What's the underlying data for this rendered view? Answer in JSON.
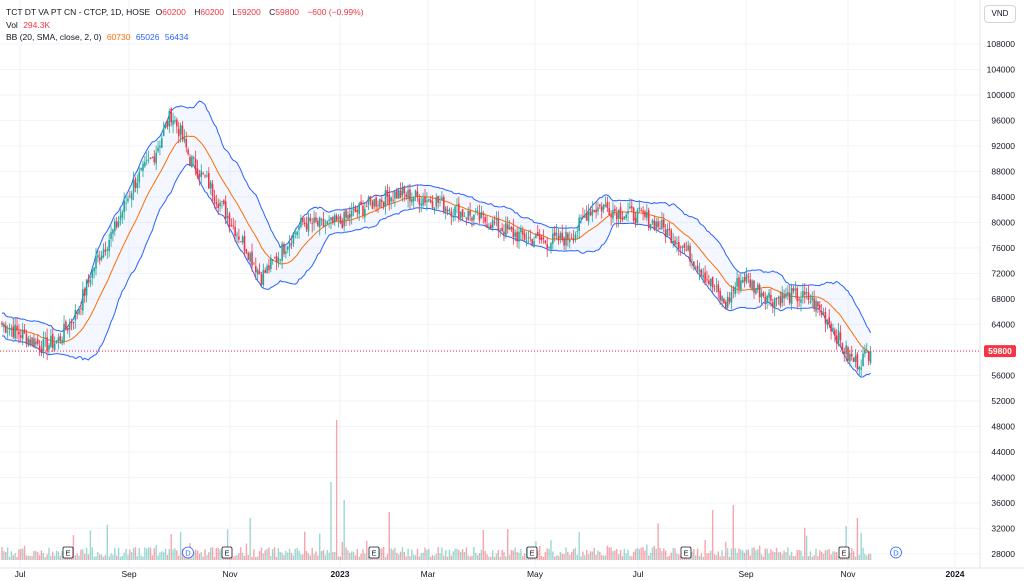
{
  "legend": {
    "title": "TCT DT VA PT CN - CTCP, 1D, HOSE",
    "open_label": "O",
    "open": "60200",
    "high_label": "H",
    "high": "60200",
    "low_label": "L",
    "low": "59200",
    "close_label": "C",
    "close": "59800",
    "change": "−600 (−0.99%)",
    "vol_label": "Vol",
    "vol": "294.3K",
    "bb_label": "BB (20, SMA, close, 2, 0)",
    "bb_basis": "60730",
    "bb_upper": "65026",
    "bb_lower": "56434"
  },
  "currency": "VND",
  "last_price": "59800",
  "colors": {
    "up": "#26a69a",
    "down": "#f23645",
    "basis": "#ff6d00",
    "bands": "#2962ff",
    "band_fill": "#e3f2fd"
  },
  "chart_data": {
    "type": "candlestick",
    "y_axis": {
      "labels": [
        "108000",
        "104000",
        "100000",
        "96000",
        "92000",
        "88000",
        "84000",
        "80000",
        "76000",
        "72000",
        "68000",
        "64000",
        "60000",
        "56000",
        "52000",
        "48000",
        "44000",
        "40000",
        "36000",
        "32000",
        "28000"
      ],
      "range": [
        26600,
        110000
      ]
    },
    "x_axis": {
      "labels": [
        "Jul",
        "Sep",
        "Nov",
        "2023",
        "Mar",
        "May",
        "Jul",
        "Sep",
        "Nov",
        "2024"
      ],
      "bold": [
        "2023",
        "2024"
      ]
    },
    "close_anchors": [
      {
        "d": 0,
        "v": 64000
      },
      {
        "d": 10,
        "v": 62500
      },
      {
        "d": 22,
        "v": 60500
      },
      {
        "d": 30,
        "v": 61500
      },
      {
        "d": 40,
        "v": 66000
      },
      {
        "d": 50,
        "v": 74000
      },
      {
        "d": 60,
        "v": 79000
      },
      {
        "d": 70,
        "v": 86000
      },
      {
        "d": 80,
        "v": 90000
      },
      {
        "d": 90,
        "v": 97000
      },
      {
        "d": 95,
        "v": 94000
      },
      {
        "d": 100,
        "v": 90000
      },
      {
        "d": 110,
        "v": 86000
      },
      {
        "d": 120,
        "v": 81000
      },
      {
        "d": 130,
        "v": 76000
      },
      {
        "d": 138,
        "v": 71500
      },
      {
        "d": 145,
        "v": 74000
      },
      {
        "d": 152,
        "v": 77000
      },
      {
        "d": 160,
        "v": 80000
      },
      {
        "d": 170,
        "v": 79500
      },
      {
        "d": 180,
        "v": 80000
      },
      {
        "d": 190,
        "v": 82000
      },
      {
        "d": 200,
        "v": 83500
      },
      {
        "d": 210,
        "v": 84500
      },
      {
        "d": 220,
        "v": 84000
      },
      {
        "d": 230,
        "v": 83500
      },
      {
        "d": 240,
        "v": 82000
      },
      {
        "d": 250,
        "v": 81000
      },
      {
        "d": 260,
        "v": 80000
      },
      {
        "d": 270,
        "v": 78500
      },
      {
        "d": 280,
        "v": 77500
      },
      {
        "d": 290,
        "v": 77000
      },
      {
        "d": 300,
        "v": 77500
      },
      {
        "d": 305,
        "v": 78500
      },
      {
        "d": 312,
        "v": 82000
      },
      {
        "d": 320,
        "v": 82500
      },
      {
        "d": 330,
        "v": 81500
      },
      {
        "d": 340,
        "v": 81000
      },
      {
        "d": 350,
        "v": 79500
      },
      {
        "d": 360,
        "v": 77000
      },
      {
        "d": 370,
        "v": 73500
      },
      {
        "d": 380,
        "v": 69000
      },
      {
        "d": 385,
        "v": 67000
      },
      {
        "d": 390,
        "v": 70000
      },
      {
        "d": 395,
        "v": 71500
      },
      {
        "d": 400,
        "v": 70000
      },
      {
        "d": 410,
        "v": 68000
      },
      {
        "d": 420,
        "v": 68500
      },
      {
        "d": 430,
        "v": 68000
      },
      {
        "d": 440,
        "v": 64500
      },
      {
        "d": 450,
        "v": 59000
      },
      {
        "d": 455,
        "v": 58000
      },
      {
        "d": 462,
        "v": 59800
      }
    ]
  }
}
